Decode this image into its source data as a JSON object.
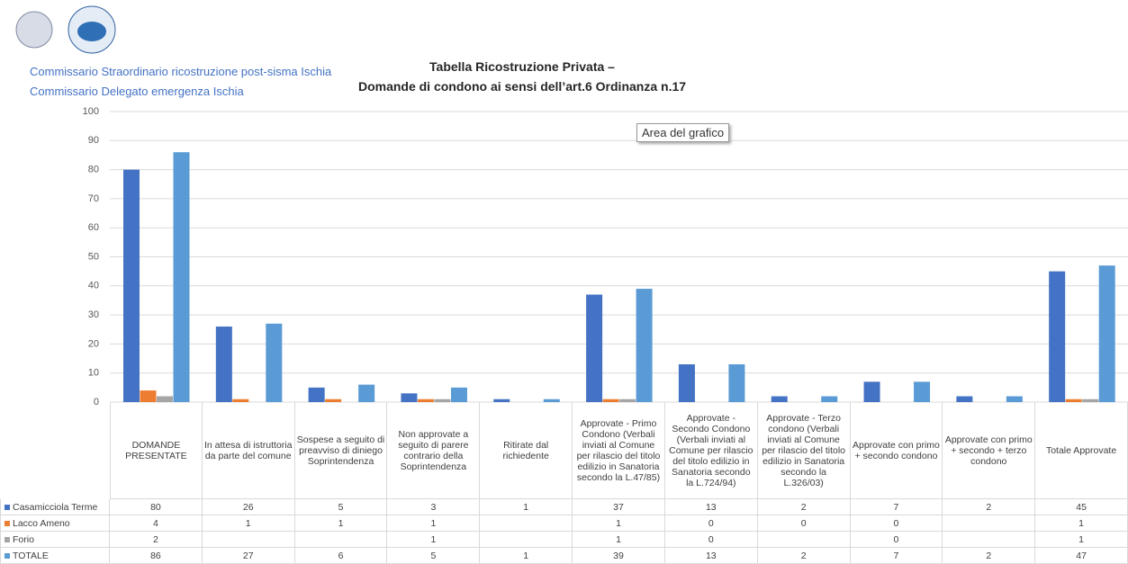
{
  "header": {
    "line1": "Commissario Straordinario ricostruzione post-sisma Ischia",
    "line2": "Commissario Delegato emergenza Ischia"
  },
  "tooltip": "Area del grafico",
  "chart_data": {
    "type": "bar",
    "title": [
      "Tabella Ricostruzione Privata –",
      "Domande di condono ai sensi dell’art.6 Ordinanza n.17"
    ],
    "categories": [
      "DOMANDE PRESENTATE",
      "In attesa di istruttoria da parte del comune",
      "Sospese a seguito di preavviso di diniego Soprintendenza",
      "Non approvate a seguito di parere contrario della Soprintendenza",
      "Ritirate dal richiedente",
      "Approvate - Primo Condono (Verbali inviati al Comune per rilascio del titolo edilizio in Sanatoria secondo la L.47/85)",
      "Approvate - Secondo Condono (Verbali inviati al Comune per rilascio del titolo edilizio in Sanatoria secondo la L.724/94)",
      "Approvate - Terzo condono (Verbali inviati al Comune per rilascio del titolo edilizio in Sanatoria secondo la L.326/03)",
      "Approvate con primo + secondo condono",
      "Approvate con primo + secondo + terzo condono",
      "Totale Approvate"
    ],
    "series": [
      {
        "name": "Casamicciola Terme",
        "color": "#4472c4",
        "values": [
          80,
          26,
          5,
          3,
          1,
          37,
          13,
          2,
          7,
          2,
          45
        ]
      },
      {
        "name": "Lacco Ameno",
        "color": "#ed7d31",
        "values": [
          4,
          1,
          1,
          1,
          null,
          1,
          0,
          0,
          0,
          null,
          1
        ]
      },
      {
        "name": "Forio",
        "color": "#a5a5a5",
        "values": [
          2,
          null,
          null,
          1,
          null,
          1,
          0,
          null,
          0,
          null,
          1
        ]
      },
      {
        "name": "TOTALE",
        "color": "#5b9bd5",
        "values": [
          86,
          27,
          6,
          5,
          1,
          39,
          13,
          2,
          7,
          2,
          47
        ]
      }
    ],
    "ylim": [
      0,
      100
    ],
    "yticks": [
      0,
      10,
      20,
      30,
      40,
      50,
      60,
      70,
      80,
      90,
      100
    ],
    "grid": true
  }
}
